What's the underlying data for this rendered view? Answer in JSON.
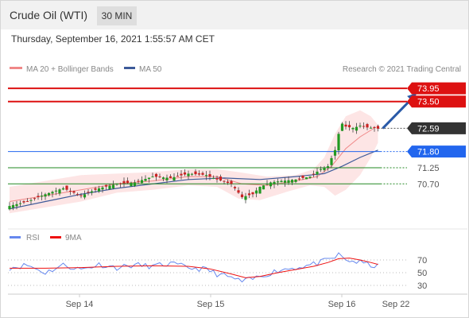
{
  "header": {
    "title": "Crude Oil (WTI)",
    "timeframe": "30 MIN"
  },
  "datetime": "Thursday, September 16, 2021 1:55:57 AM CET",
  "legend": {
    "ma20": "MA 20 + Bollinger Bands",
    "ma50": "MA 50",
    "credit": "Research © 2021 Trading Central",
    "rsi": "RSI",
    "rsi_ma": "9MA"
  },
  "colors": {
    "resistance": "#dd1111",
    "current": "#333333",
    "pivot": "#2266ee",
    "support": "#228822",
    "candle_up": "#229922",
    "candle_down": "#cc2222",
    "ma20": "#f08888",
    "ma50": "#3d5a99",
    "bollinger": "#fcdcdc",
    "rsi": "#6688ee",
    "rsi_ma": "#ee1111",
    "arrow": "#2a5aa8"
  },
  "icons": {
    "arrow": "up-right-arrow-icon"
  },
  "chart_data": [
    {
      "type": "line",
      "subtype": "candlestick",
      "instrument": "Crude Oil (WTI)",
      "interval": "30 MIN",
      "x_ticks": [
        "Sep 14",
        "Sep 15",
        "Sep 16",
        "Sep 22"
      ],
      "ylim": [
        69.6,
        74.25
      ],
      "levels": [
        {
          "label": "73.95",
          "value": 73.95,
          "kind": "resistance"
        },
        {
          "label": "73.50",
          "value": 73.5,
          "kind": "resistance"
        },
        {
          "label": "72.59",
          "value": 72.59,
          "kind": "current"
        },
        {
          "label": "71.80",
          "value": 71.8,
          "kind": "pivot"
        },
        {
          "label": "71.25",
          "value": 71.25,
          "kind": "support"
        },
        {
          "label": "70.70",
          "value": 70.7,
          "kind": "support"
        }
      ],
      "close_path": [
        [
          0,
          69.95
        ],
        [
          5,
          70.1
        ],
        [
          10,
          70.35
        ],
        [
          15,
          70.55
        ],
        [
          20,
          70.3
        ],
        [
          25,
          70.55
        ],
        [
          30,
          70.7
        ],
        [
          35,
          70.75
        ],
        [
          40,
          70.95
        ],
        [
          45,
          70.9
        ],
        [
          50,
          71.05
        ],
        [
          55,
          71.0
        ],
        [
          58,
          70.85
        ],
        [
          62,
          70.7
        ],
        [
          65,
          70.25
        ],
        [
          68,
          70.35
        ],
        [
          70,
          70.6
        ],
        [
          73,
          70.75
        ],
        [
          76,
          70.8
        ],
        [
          80,
          70.85
        ],
        [
          84,
          70.95
        ],
        [
          87,
          71.2
        ],
        [
          89,
          71.3
        ],
        [
          91,
          71.85
        ],
        [
          92,
          72.4
        ],
        [
          93,
          72.75
        ],
        [
          94,
          72.65
        ],
        [
          96,
          72.6
        ],
        [
          98,
          72.68
        ],
        [
          100,
          72.62
        ],
        [
          102,
          72.6
        ],
        [
          103,
          72.58
        ]
      ],
      "ma20_path": [
        [
          0,
          70.1
        ],
        [
          10,
          70.3
        ],
        [
          20,
          70.5
        ],
        [
          30,
          70.7
        ],
        [
          40,
          70.8
        ],
        [
          50,
          70.95
        ],
        [
          58,
          70.95
        ],
        [
          65,
          70.7
        ],
        [
          72,
          70.65
        ],
        [
          80,
          70.8
        ],
        [
          86,
          70.95
        ],
        [
          90,
          71.3
        ],
        [
          94,
          71.9
        ],
        [
          98,
          72.3
        ],
        [
          102,
          72.6
        ]
      ],
      "bollinger_upper": [
        [
          0,
          70.6
        ],
        [
          10,
          70.8
        ],
        [
          20,
          71.0
        ],
        [
          30,
          71.05
        ],
        [
          40,
          71.1
        ],
        [
          50,
          71.2
        ],
        [
          58,
          71.2
        ],
        [
          64,
          71.1
        ],
        [
          72,
          70.95
        ],
        [
          80,
          71.0
        ],
        [
          85,
          71.2
        ],
        [
          88,
          71.6
        ],
        [
          91,
          72.4
        ],
        [
          94,
          73.0
        ],
        [
          98,
          73.2
        ],
        [
          101,
          73.0
        ],
        [
          103,
          72.7
        ]
      ],
      "bollinger_lower": [
        [
          0,
          69.7
        ],
        [
          10,
          69.9
        ],
        [
          20,
          70.1
        ],
        [
          30,
          70.4
        ],
        [
          40,
          70.5
        ],
        [
          50,
          70.65
        ],
        [
          58,
          70.6
        ],
        [
          64,
          70.2
        ],
        [
          70,
          70.15
        ],
        [
          78,
          70.45
        ],
        [
          84,
          70.65
        ],
        [
          88,
          70.6
        ],
        [
          91,
          70.3
        ],
        [
          94,
          70.5
        ],
        [
          98,
          71.0
        ],
        [
          101,
          71.6
        ],
        [
          103,
          72.1
        ]
      ],
      "ma50_path": [
        [
          0,
          69.85
        ],
        [
          10,
          70.1
        ],
        [
          20,
          70.35
        ],
        [
          30,
          70.55
        ],
        [
          40,
          70.7
        ],
        [
          50,
          70.85
        ],
        [
          60,
          70.9
        ],
        [
          70,
          70.85
        ],
        [
          80,
          70.95
        ],
        [
          88,
          71.05
        ],
        [
          93,
          71.3
        ],
        [
          98,
          71.6
        ],
        [
          103,
          71.85
        ]
      ],
      "projection": {
        "from": [
          103,
          72.59
        ],
        "to": [
          112,
          73.95
        ]
      }
    },
    {
      "type": "line",
      "title": "RSI",
      "ylim": [
        20,
        85
      ],
      "y_ticks": [
        70,
        50,
        30
      ],
      "series": [
        {
          "name": "RSI",
          "values": [
            [
              0,
              58
            ],
            [
              5,
              62
            ],
            [
              10,
              50
            ],
            [
              15,
              62
            ],
            [
              20,
              55
            ],
            [
              25,
              63
            ],
            [
              30,
              58
            ],
            [
              35,
              62
            ],
            [
              40,
              60
            ],
            [
              45,
              64
            ],
            [
              50,
              58
            ],
            [
              55,
              55
            ],
            [
              58,
              48
            ],
            [
              62,
              42
            ],
            [
              65,
              36
            ],
            [
              68,
              40
            ],
            [
              72,
              48
            ],
            [
              76,
              55
            ],
            [
              80,
              58
            ],
            [
              84,
              62
            ],
            [
              87,
              66
            ],
            [
              89,
              70
            ],
            [
              91,
              74
            ],
            [
              92,
              78
            ],
            [
              94,
              70
            ],
            [
              96,
              68
            ],
            [
              98,
              66
            ],
            [
              101,
              62
            ],
            [
              103,
              60
            ]
          ]
        },
        {
          "name": "9MA",
          "values": [
            [
              0,
              57
            ],
            [
              10,
              57
            ],
            [
              20,
              58
            ],
            [
              30,
              60
            ],
            [
              40,
              61
            ],
            [
              50,
              60
            ],
            [
              56,
              56
            ],
            [
              62,
              48
            ],
            [
              66,
              42
            ],
            [
              70,
              44
            ],
            [
              75,
              50
            ],
            [
              80,
              55
            ],
            [
              85,
              60
            ],
            [
              89,
              66
            ],
            [
              92,
              72
            ],
            [
              95,
              73
            ],
            [
              98,
              70
            ],
            [
              101,
              66
            ],
            [
              103,
              63
            ]
          ]
        }
      ]
    }
  ]
}
